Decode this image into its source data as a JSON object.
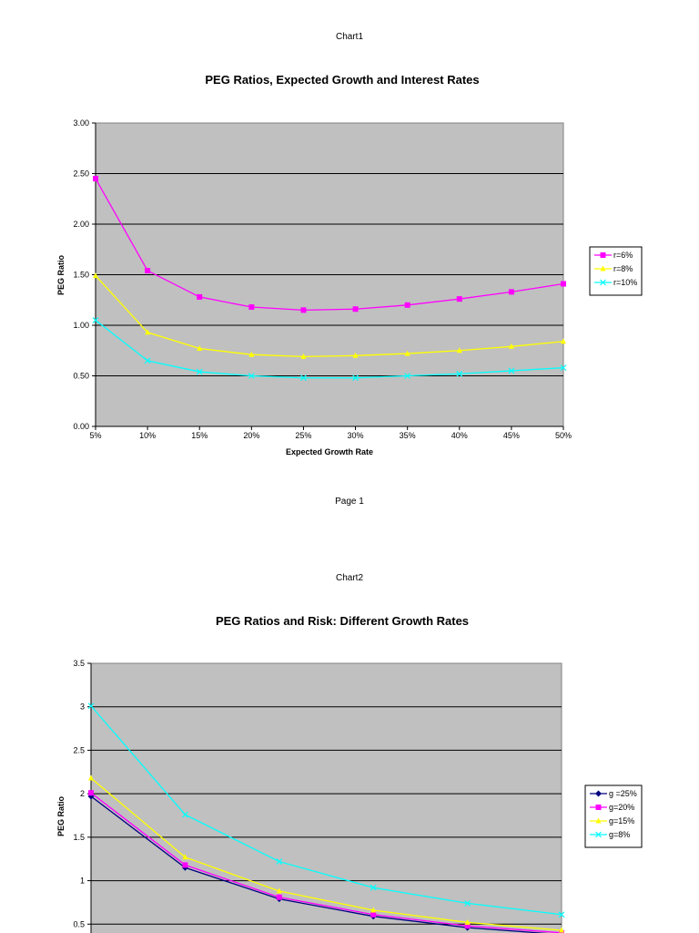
{
  "pages": {
    "chart1_header": "Chart1",
    "page1_footer": "Page 1",
    "chart2_header": "Chart2"
  },
  "chart_data": [
    {
      "type": "line",
      "title": "PEG Ratios, Expected Growth and Interest Rates",
      "xlabel": "Expected Growth Rate",
      "ylabel": "PEG Ratio",
      "categories": [
        "5%",
        "10%",
        "15%",
        "20%",
        "25%",
        "30%",
        "35%",
        "40%",
        "45%",
        "50%"
      ],
      "yticks": [
        "0.00",
        "0.50",
        "1.00",
        "1.50",
        "2.00",
        "2.50",
        "3.00"
      ],
      "ylim": [
        0,
        3
      ],
      "grid": true,
      "legend_position": "right",
      "series": [
        {
          "name": "r=6%",
          "color": "#ff00ff",
          "marker": "square",
          "values": [
            2.45,
            1.54,
            1.28,
            1.18,
            1.15,
            1.16,
            1.2,
            1.26,
            1.33,
            1.41
          ]
        },
        {
          "name": "r=8%",
          "color": "#ffff00",
          "marker": "triangle",
          "values": [
            1.49,
            0.93,
            0.77,
            0.71,
            0.69,
            0.7,
            0.72,
            0.75,
            0.79,
            0.84
          ]
        },
        {
          "name": "r=10%",
          "color": "#00ffff",
          "marker": "x",
          "values": [
            1.05,
            0.65,
            0.54,
            0.5,
            0.48,
            0.48,
            0.5,
            0.52,
            0.55,
            0.58
          ]
        }
      ]
    },
    {
      "type": "line",
      "title": "PEG Ratios and Risk: Different Growth Rates",
      "xlabel": "",
      "ylabel": "PEG Ratio",
      "categories": [
        "",
        "",
        "",
        "",
        "",
        ""
      ],
      "yticks": [
        "0.5",
        "1",
        "1.5",
        "2",
        "2.5",
        "3",
        "3.5"
      ],
      "ylim": [
        0,
        3.5
      ],
      "grid": true,
      "legend_position": "right",
      "series": [
        {
          "name": "g =25%",
          "color": "#000080",
          "marker": "diamond",
          "values": [
            1.97,
            1.15,
            0.79,
            0.59,
            0.46,
            0.38
          ]
        },
        {
          "name": "g=20%",
          "color": "#ff00ff",
          "marker": "square",
          "values": [
            2.01,
            1.18,
            0.81,
            0.61,
            0.48,
            0.4
          ]
        },
        {
          "name": "g=15%",
          "color": "#ffff00",
          "marker": "triangle",
          "values": [
            2.18,
            1.27,
            0.88,
            0.66,
            0.52,
            0.43
          ]
        },
        {
          "name": "g=8%",
          "color": "#00ffff",
          "marker": "x",
          "values": [
            3.01,
            1.76,
            1.22,
            0.92,
            0.74,
            0.61
          ]
        }
      ]
    }
  ]
}
